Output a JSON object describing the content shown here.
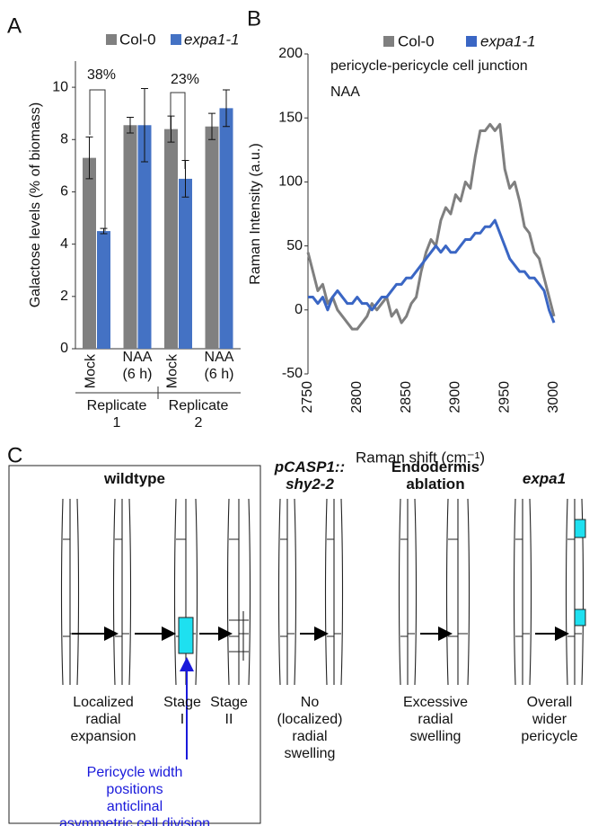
{
  "panel_labels": [
    "A",
    "B",
    "C"
  ],
  "chart_data": [
    {
      "type": "bar",
      "ylabel": "Galactose levels (% of biomass)",
      "categories": [
        "Mock",
        "NAA\n(6 h)",
        "Mock",
        "NAA\n(6 h)"
      ],
      "groups": [
        "Replicate\n1",
        "Replicate\n2"
      ],
      "series": [
        {
          "name": "Col-0",
          "color": "#808080",
          "values": [
            7.3,
            8.55,
            8.4,
            8.5
          ],
          "errors": [
            0.8,
            0.3,
            0.5,
            0.5
          ]
        },
        {
          "name": "expa1-1",
          "color": "#4472c4",
          "values": [
            4.5,
            8.55,
            6.5,
            9.2
          ],
          "errors": [
            0.1,
            1.4,
            0.7,
            0.7
          ]
        }
      ],
      "annotations": [
        "38%",
        "23%"
      ],
      "ylim": [
        0,
        11
      ],
      "yticks": [
        0,
        2,
        4,
        6,
        8,
        10
      ]
    },
    {
      "type": "line",
      "ylabel": "Raman Intensity (a.u.)",
      "xlabel": "Raman shift (cm⁻¹)",
      "annotations": [
        "pericycle-pericycle cell junction",
        "NAA"
      ],
      "x": [
        2750,
        2755,
        2760,
        2765,
        2770,
        2775,
        2780,
        2785,
        2790,
        2795,
        2800,
        2805,
        2810,
        2815,
        2820,
        2825,
        2830,
        2835,
        2840,
        2845,
        2850,
        2855,
        2860,
        2865,
        2870,
        2875,
        2880,
        2885,
        2890,
        2895,
        2900,
        2905,
        2910,
        2915,
        2920,
        2925,
        2930,
        2935,
        2940,
        2945,
        2950,
        2955,
        2960,
        2965,
        2970,
        2975,
        2980,
        2985,
        2990,
        2995,
        3000
      ],
      "series": [
        {
          "name": "Col-0",
          "color": "#7f7f7f",
          "values": [
            45,
            30,
            15,
            20,
            5,
            10,
            0,
            -5,
            -10,
            -15,
            -15,
            -10,
            -5,
            5,
            0,
            5,
            10,
            -5,
            0,
            -10,
            -5,
            5,
            10,
            30,
            45,
            55,
            50,
            70,
            80,
            75,
            90,
            85,
            100,
            95,
            120,
            140,
            140,
            145,
            140,
            145,
            110,
            95,
            100,
            85,
            65,
            60,
            45,
            40,
            25,
            10,
            -5
          ]
        },
        {
          "name": "expa1-1",
          "color": "#3a66c4",
          "values": [
            10,
            10,
            5,
            10,
            0,
            10,
            15,
            10,
            5,
            5,
            10,
            5,
            5,
            0,
            5,
            10,
            10,
            15,
            20,
            20,
            25,
            25,
            30,
            35,
            40,
            45,
            50,
            45,
            50,
            45,
            45,
            50,
            55,
            55,
            60,
            60,
            65,
            65,
            70,
            60,
            50,
            40,
            35,
            30,
            30,
            25,
            25,
            20,
            15,
            0,
            -10
          ]
        }
      ],
      "xlim": [
        2750,
        3000
      ],
      "xticks": [
        2750,
        2800,
        2850,
        2900,
        2950,
        3000
      ],
      "ylim": [
        -50,
        200
      ],
      "yticks": [
        -50,
        0,
        50,
        100,
        150,
        200
      ]
    }
  ],
  "diagram": {
    "headings": [
      "wildtype",
      "pCASP1::\nshy2-2",
      "Endodermis\nablation",
      "expa1"
    ],
    "captions": [
      "Localized\nradial\nexpansion",
      "Stage\nI",
      "Stage\nII",
      "No\n(localized)\nradial\nswelling",
      "Excessive\nradial\nswelling",
      "Overall\nwider\npericycle"
    ],
    "note": "Pericycle width\npositions\nanticlinal\nasymmetric cell division"
  }
}
